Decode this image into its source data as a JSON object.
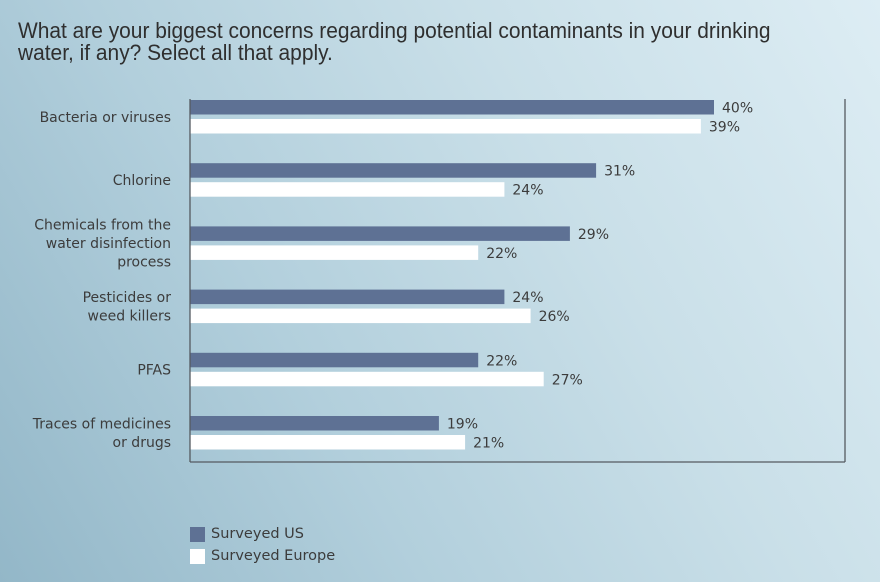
{
  "title": "What are your biggest concerns regarding potential contaminants in your drinking water, if any? Select all that apply.",
  "colors": {
    "us": "#5e7194",
    "europe": "#ffffff",
    "axis": "#555a60",
    "text": "#3c3c3c"
  },
  "chart_data": {
    "type": "bar",
    "orientation": "horizontal",
    "title": "What are your biggest concerns regarding potential contaminants in your drinking water, if any? Select all that apply.",
    "xlabel": "",
    "ylabel": "",
    "value_suffix": "%",
    "xlim": [
      0,
      50
    ],
    "grid": false,
    "legend_position": "bottom-left",
    "categories": [
      [
        "Bacteria or viruses"
      ],
      [
        "Chlorine"
      ],
      [
        "Chemicals from the",
        "water disinfection",
        "process"
      ],
      [
        "Pesticides or",
        "weed killers"
      ],
      [
        "PFAS"
      ],
      [
        "Traces of medicines",
        "or drugs"
      ]
    ],
    "series": [
      {
        "name": "Surveyed US",
        "color": "#5e7194",
        "values": [
          40,
          31,
          29,
          24,
          22,
          19
        ]
      },
      {
        "name": "Surveyed Europe",
        "color": "#ffffff",
        "values": [
          39,
          24,
          22,
          26,
          27,
          21
        ]
      }
    ]
  },
  "legend": [
    {
      "label": "Surveyed US",
      "color": "#5e7194"
    },
    {
      "label": "Surveyed Europe",
      "color": "#ffffff"
    }
  ]
}
